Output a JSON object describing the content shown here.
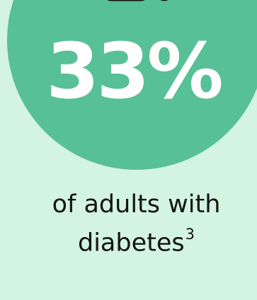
{
  "stat": {
    "value": "33%",
    "caption_line1": "of adults with",
    "caption_line2": "diabetes",
    "footnote": "3"
  },
  "icon": "device-icon",
  "colors": {
    "background": "#d3f3e3",
    "circle": "#58c096",
    "stat_text": "#ffffff",
    "caption_text": "#141414"
  }
}
